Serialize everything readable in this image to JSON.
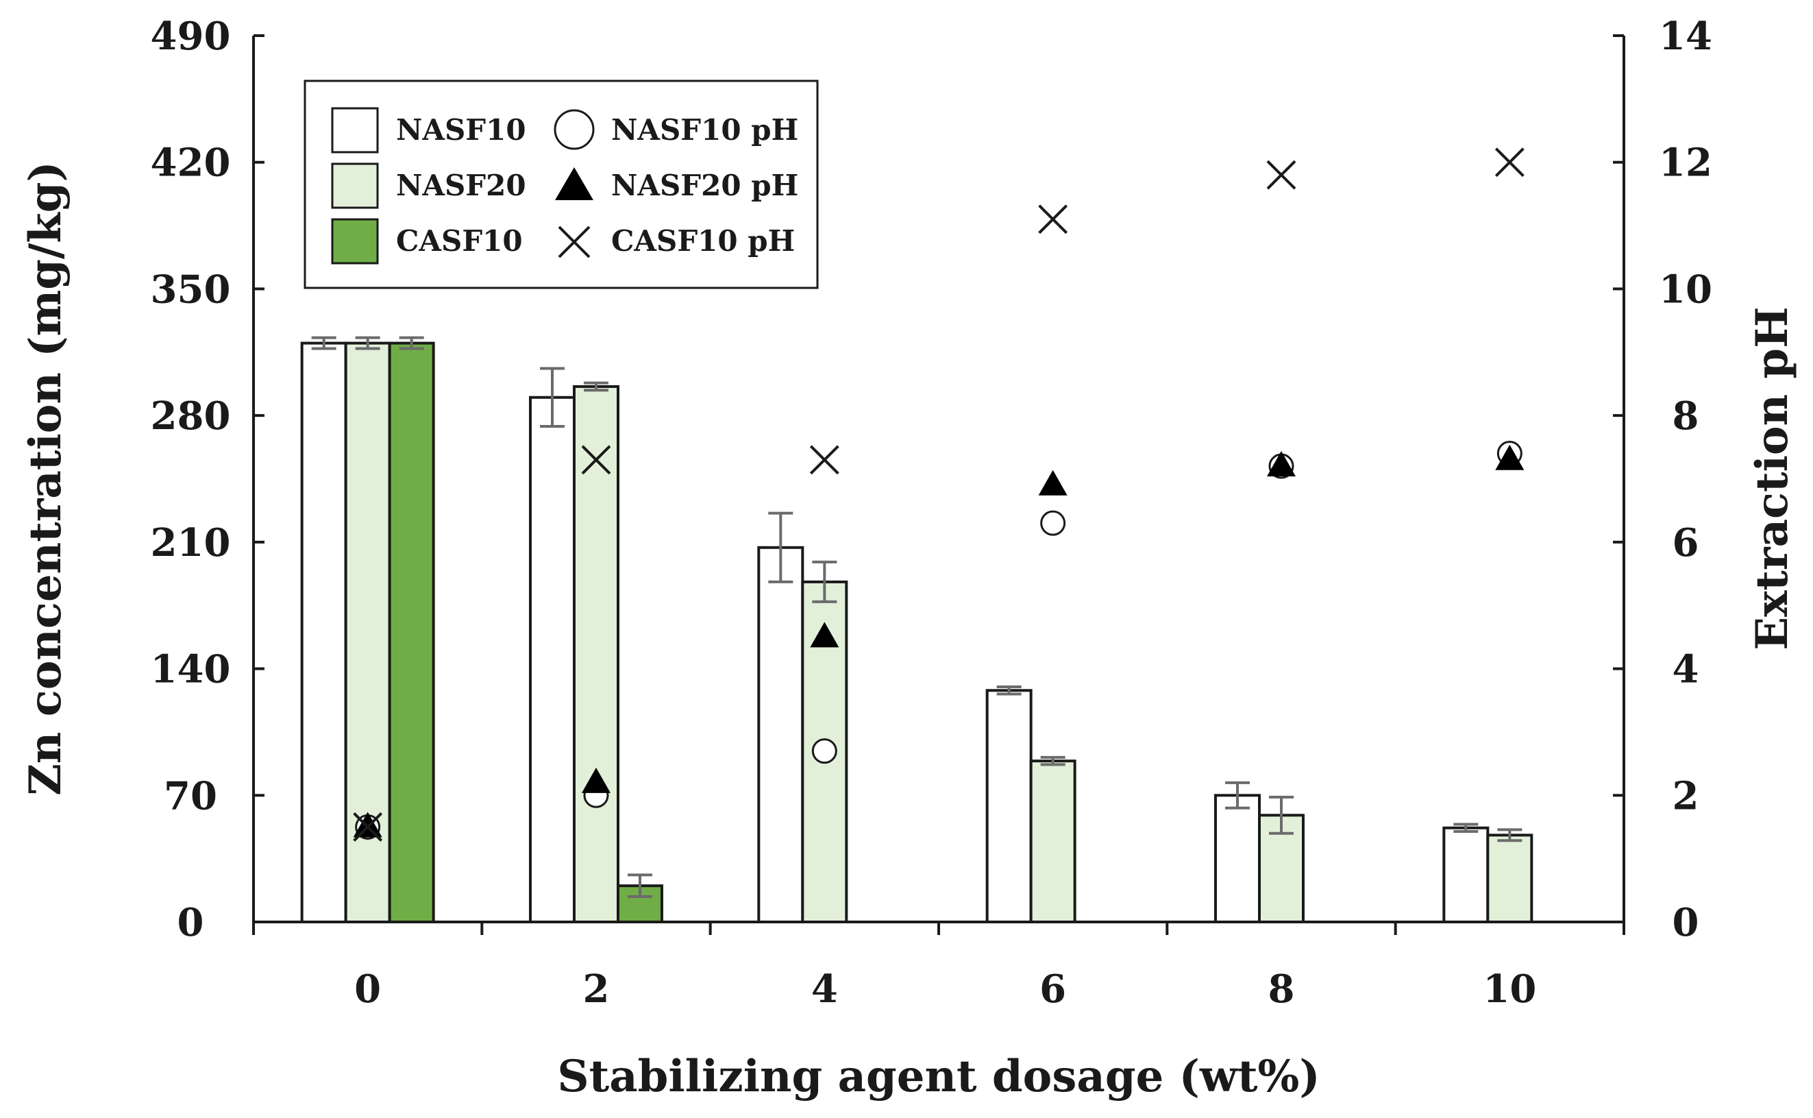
{
  "chart_data": {
    "type": "bar",
    "title": "",
    "xlabel": "Stabilizing agent dosage (wt%)",
    "ylabel": "Zn concentration (mg/kg)",
    "y2label": "Extraction pH",
    "categories": [
      "0",
      "2",
      "4",
      "6",
      "8",
      "10"
    ],
    "ylim": [
      0,
      490
    ],
    "y_ticks": [
      "0",
      "70",
      "140",
      "210",
      "280",
      "350",
      "420",
      "490"
    ],
    "y2lim": [
      0,
      14
    ],
    "y2_ticks": [
      "0",
      "2",
      "4",
      "6",
      "8",
      "10",
      "12",
      "14"
    ],
    "grid": false,
    "legend_position": "top-left",
    "series": [
      {
        "name": "NASF10",
        "kind": "bar",
        "color": "#ffffff",
        "values": [
          320,
          290,
          207,
          128,
          70,
          52
        ],
        "errors": [
          3,
          16,
          19,
          2,
          7,
          2
        ]
      },
      {
        "name": "NASF20",
        "kind": "bar",
        "color": "#e2f0d9",
        "values": [
          320,
          296,
          188,
          89,
          59,
          48
        ],
        "errors": [
          3,
          2,
          11,
          2,
          10,
          3
        ]
      },
      {
        "name": "CASF10",
        "kind": "bar",
        "color": "#70ad47",
        "values": [
          320,
          20,
          null,
          null,
          null,
          null
        ],
        "errors": [
          3,
          6,
          null,
          null,
          null,
          null
        ]
      },
      {
        "name": "NASF10 pH",
        "kind": "marker",
        "marker": "circle",
        "axis": "y2",
        "values": [
          1.5,
          2.0,
          2.7,
          6.3,
          7.2,
          7.4
        ]
      },
      {
        "name": "NASF20 pH",
        "kind": "marker",
        "marker": "triangle",
        "axis": "y2",
        "values": [
          1.5,
          2.2,
          4.5,
          6.9,
          7.2,
          7.3
        ]
      },
      {
        "name": "CASF10 pH",
        "kind": "marker",
        "marker": "x",
        "axis": "y2",
        "values": [
          1.5,
          7.3,
          7.3,
          11.1,
          11.8,
          12.0
        ]
      }
    ]
  }
}
